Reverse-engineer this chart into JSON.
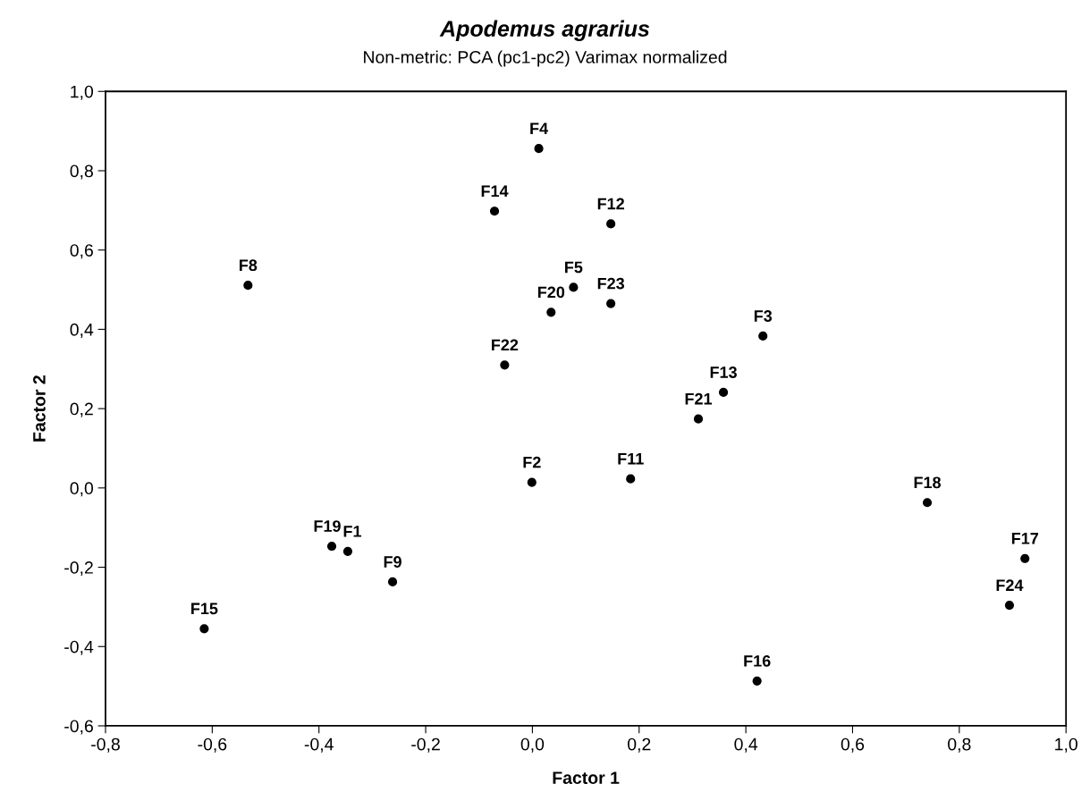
{
  "chart_data": {
    "type": "scatter",
    "title": "Apodemus agrarius",
    "subtitle": "Non-metric: PCA (pc1-pc2) Varimax normalized",
    "xlabel": "Factor 1",
    "ylabel": "Factor 2",
    "x": [
      0.012,
      -0.071,
      0.147,
      0.077,
      0.035,
      0.147,
      0.432,
      -0.052,
      0.358,
      0.311,
      -0.376,
      -0.346,
      -0.262,
      -0.615,
      -0.001,
      0.184,
      0.74,
      0.923,
      0.894,
      0.421,
      -0.533
    ],
    "values": [
      0.856,
      0.698,
      0.666,
      0.506,
      0.443,
      0.465,
      0.383,
      0.31,
      0.241,
      0.174,
      -0.147,
      -0.16,
      -0.237,
      -0.355,
      0.014,
      0.023,
      -0.037,
      -0.178,
      -0.296,
      -0.487,
      0.511
    ],
    "color": "#000000",
    "marker": "circle",
    "grid": false,
    "legend": false,
    "annotations": [
      {
        "text": "F4",
        "x": 0.012,
        "y": 0.856
      },
      {
        "text": "F14",
        "x": -0.071,
        "y": 0.698
      },
      {
        "text": "F12",
        "x": 0.147,
        "y": 0.666
      },
      {
        "text": "F5",
        "x": 0.077,
        "y": 0.506
      },
      {
        "text": "F20",
        "x": 0.035,
        "y": 0.443
      },
      {
        "text": "F23",
        "x": 0.147,
        "y": 0.465
      },
      {
        "text": "F3",
        "x": 0.432,
        "y": 0.383
      },
      {
        "text": "F22",
        "x": -0.052,
        "y": 0.31
      },
      {
        "text": "F13",
        "x": 0.358,
        "y": 0.241
      },
      {
        "text": "F21",
        "x": 0.311,
        "y": 0.174
      },
      {
        "text": "F19",
        "x": -0.376,
        "y": -0.147
      },
      {
        "text": "F1",
        "x": -0.346,
        "y": -0.16
      },
      {
        "text": "F9",
        "x": -0.262,
        "y": -0.237
      },
      {
        "text": "F15",
        "x": -0.615,
        "y": -0.355
      },
      {
        "text": "F2",
        "x": -0.001,
        "y": 0.014
      },
      {
        "text": "F11",
        "x": 0.184,
        "y": 0.023
      },
      {
        "text": "F18",
        "x": 0.74,
        "y": -0.037
      },
      {
        "text": "F17",
        "x": 0.923,
        "y": -0.178
      },
      {
        "text": "F24",
        "x": 0.894,
        "y": -0.296
      },
      {
        "text": "F16",
        "x": 0.421,
        "y": -0.487
      },
      {
        "text": "F8",
        "x": -0.533,
        "y": 0.511
      }
    ],
    "xlim": [
      -0.8,
      1.0
    ],
    "ylim": [
      -0.6,
      1.0
    ],
    "xticks": [
      {
        "value": -0.8,
        "label": "-0,8"
      },
      {
        "value": -0.6,
        "label": "-0,6"
      },
      {
        "value": -0.4,
        "label": "-0,4"
      },
      {
        "value": -0.2,
        "label": "-0,2"
      },
      {
        "value": 0.0,
        "label": "0,0"
      },
      {
        "value": 0.2,
        "label": "0,2"
      },
      {
        "value": 0.4,
        "label": "0,4"
      },
      {
        "value": 0.6,
        "label": "0,6"
      },
      {
        "value": 0.8,
        "label": "0,8"
      },
      {
        "value": 1.0,
        "label": "1,0"
      }
    ],
    "yticks": [
      {
        "value": -0.6,
        "label": "-0,6"
      },
      {
        "value": -0.4,
        "label": "-0,4"
      },
      {
        "value": -0.2,
        "label": "-0,2"
      },
      {
        "value": 0.0,
        "label": "0,0"
      },
      {
        "value": 0.2,
        "label": "0,2"
      },
      {
        "value": 0.4,
        "label": "0,4"
      },
      {
        "value": 0.6,
        "label": "0,6"
      },
      {
        "value": 0.8,
        "label": "0,8"
      },
      {
        "value": 1.0,
        "label": "1,0"
      }
    ]
  }
}
